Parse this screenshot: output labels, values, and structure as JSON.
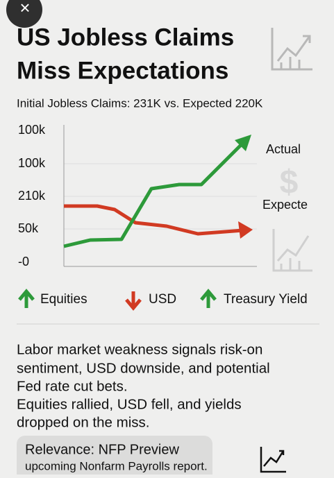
{
  "header": {
    "close": "×",
    "title_lines": [
      "US Jobless Claims",
      "Miss Expectations"
    ],
    "subtitle": "Initial Jobless Claims: 231K vs. Expected 220K"
  },
  "chart": {
    "axis_labels": [
      "100k",
      "100k",
      "210k",
      "50k",
      "-0"
    ],
    "actual_label": "Actual",
    "expected_label": "Expecte"
  },
  "legend": [
    "Equities",
    "USD",
    "Treasury Yield"
  ],
  "body_lines": [
    "Labor market weakness signals risk-on",
    "sentiment, USD downside, and potential",
    "Fed rate cut bets.",
    "Equities rallied, USD fell, and yields",
    "dropped on the miss."
  ],
  "relevance": {
    "title": "Relevance: NFP Preview",
    "text": "upcoming Nonfarm Payrolls report."
  }
}
